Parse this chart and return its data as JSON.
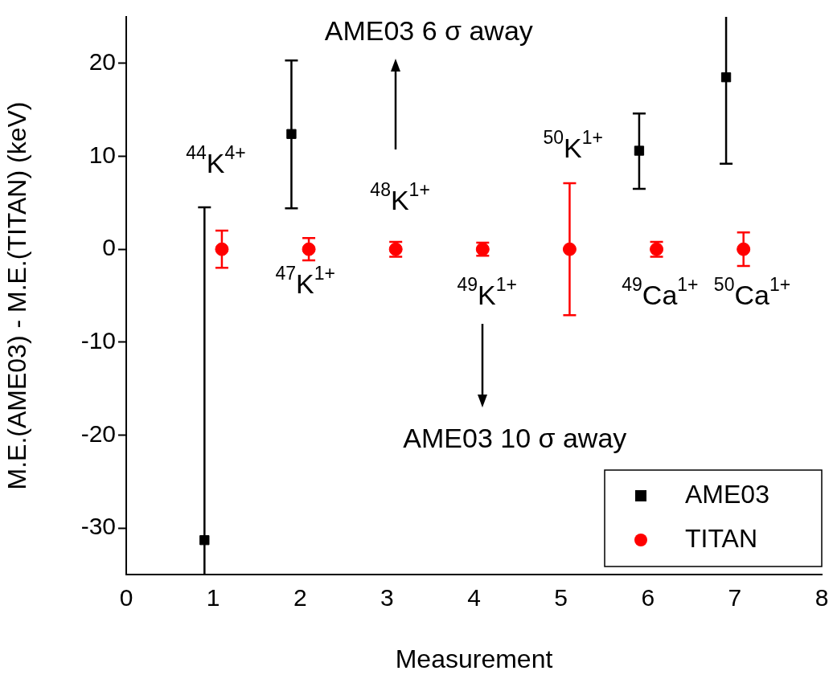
{
  "chart_data": {
    "type": "scatter",
    "xlabel": "Measurement",
    "ylabel": "M.E.(AME03) - M.E.(TITAN) (keV)",
    "xlim": [
      0,
      8
    ],
    "xticks": [
      0,
      1,
      2,
      3,
      4,
      5,
      6,
      7,
      8
    ],
    "ylim": [
      -35,
      25
    ],
    "yticks": [
      -30,
      -20,
      -10,
      0,
      10,
      20
    ],
    "legend": "bottom right",
    "grid": false,
    "series": [
      {
        "name": "AME03",
        "color": "#000000",
        "marker": "square",
        "x": [
          0.9,
          1.9,
          5.9,
          6.9
        ],
        "values": [
          -31.3,
          12.4,
          10.6,
          18.5
        ],
        "errors": [
          [
            -35,
            4.5
          ],
          [
            4.4,
            20.3
          ],
          [
            6.5,
            14.6
          ],
          [
            9.2,
            25
          ]
        ]
      },
      {
        "name": "TITAN",
        "color": "#ff0000",
        "marker": "circle",
        "x": [
          1.1,
          2.1,
          3.1,
          4.1,
          5.1,
          6.1,
          7.1
        ],
        "values": [
          0,
          0,
          0,
          0,
          0,
          0,
          0
        ],
        "errors": [
          2.0,
          1.2,
          0.8,
          0.7,
          7.1,
          0.8,
          1.8
        ]
      }
    ],
    "annotations": [
      "$^{44}$K$^{4+}$",
      "$^{47}$K$^{1+}$",
      "$^{48}$K$^{1+}$",
      "$^{49}$K$^{1+}$",
      "$^{50}$K$^{1+}$",
      "$^{49}$Ca$^{1+}$",
      "$^{50}$Ca$^{1+}$",
      "AME03 6 σ away",
      "AME03 10 σ away"
    ]
  }
}
